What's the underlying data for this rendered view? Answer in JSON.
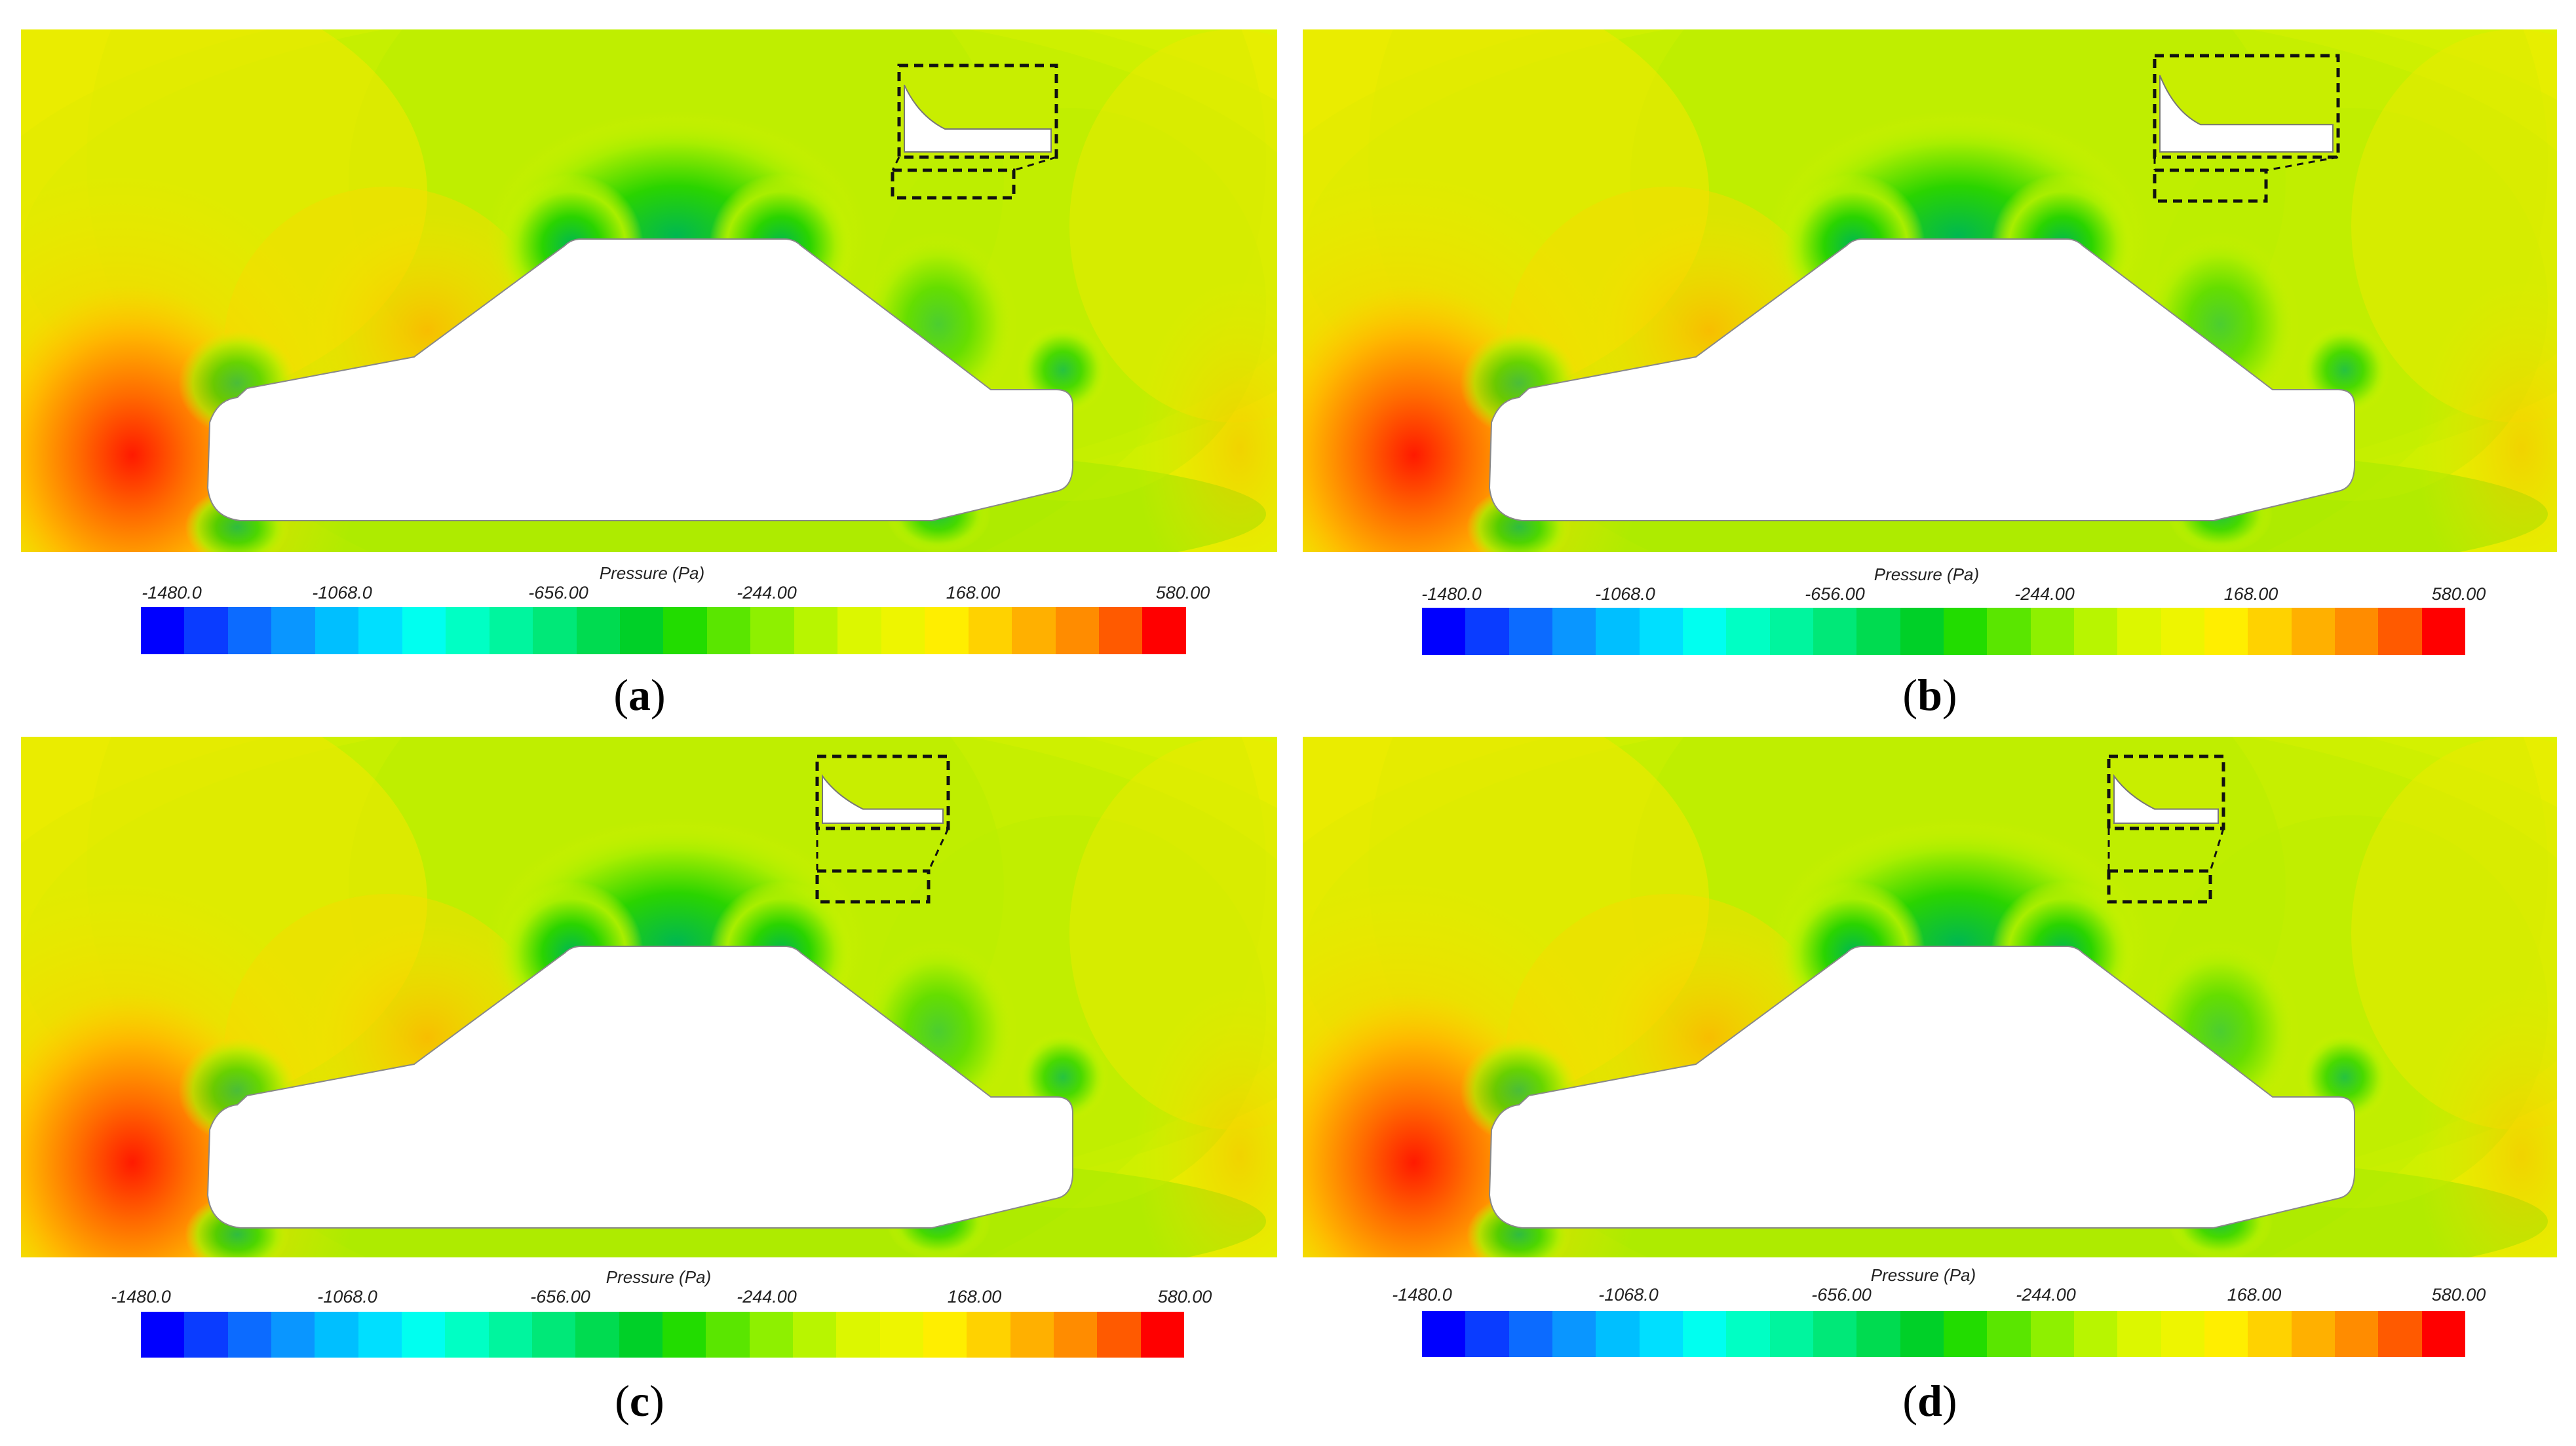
{
  "colorbar": {
    "title": "Pressure (Pa)",
    "ticks": [
      "-1480.0",
      "-1068.0",
      "-656.00",
      "-244.00",
      "168.00",
      "580.00"
    ],
    "colors": [
      "#0000ff",
      "#0a3cff",
      "#0c6bff",
      "#0a96ff",
      "#00bfff",
      "#00dfff",
      "#00fff0",
      "#00ffc4",
      "#00f59e",
      "#00e878",
      "#00db50",
      "#00d028",
      "#22dc00",
      "#5ae600",
      "#8ef000",
      "#b8f500",
      "#dcf700",
      "#eef500",
      "#ffee00",
      "#ffd200",
      "#ffb000",
      "#ff8c00",
      "#ff5a00",
      "#ff0000"
    ]
  },
  "panels": [
    {
      "id": "a",
      "caption_open": "(",
      "caption_letter": "a",
      "caption_close": ")"
    },
    {
      "id": "b",
      "caption_open": "(",
      "caption_letter": "b",
      "caption_close": ")"
    },
    {
      "id": "c",
      "caption_open": "(",
      "caption_letter": "c",
      "caption_close": ")"
    },
    {
      "id": "d",
      "caption_open": "(",
      "caption_letter": "d",
      "caption_close": ")"
    }
  ]
}
